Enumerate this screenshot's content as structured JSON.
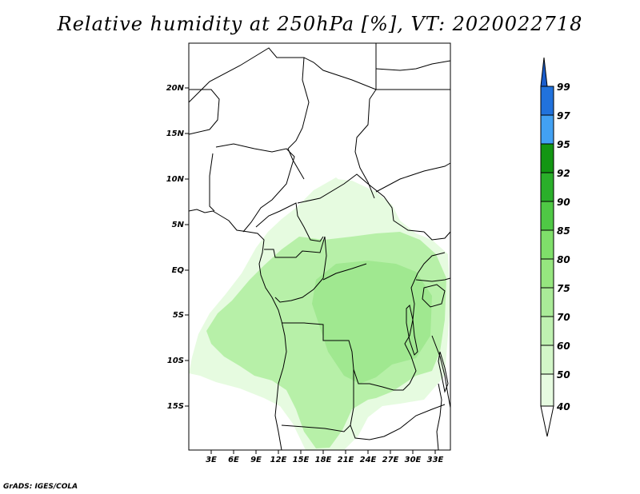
{
  "title": "Relative humidity at 250hPa [%], VT: 2020022718",
  "footer": "GrADS: IGES/COLA",
  "map": {
    "lat_ticks": [
      "20N",
      "15N",
      "10N",
      "5N",
      "EQ",
      "5S",
      "10S",
      "15S"
    ],
    "lon_ticks": [
      "3E",
      "6E",
      "9E",
      "12E",
      "15E",
      "18E",
      "21E",
      "24E",
      "27E",
      "30E",
      "33E"
    ],
    "fill_colors": {
      "light": "#e6fbe0",
      "mid": "#b7f0a8",
      "dark": "#a0e890"
    }
  },
  "colorbar": {
    "labels": [
      "40",
      "50",
      "60",
      "70",
      "75",
      "80",
      "85",
      "90",
      "92",
      "95",
      "97",
      "99"
    ],
    "colors": [
      "#ffffff",
      "#e6fbe0",
      "#d2f6c8",
      "#bff1b1",
      "#aaeb98",
      "#96e67f",
      "#7fdf6a",
      "#4fc845",
      "#2aaf2a",
      "#139613",
      "#42a1f3",
      "#2172dc",
      "#1a5dcc"
    ]
  }
}
